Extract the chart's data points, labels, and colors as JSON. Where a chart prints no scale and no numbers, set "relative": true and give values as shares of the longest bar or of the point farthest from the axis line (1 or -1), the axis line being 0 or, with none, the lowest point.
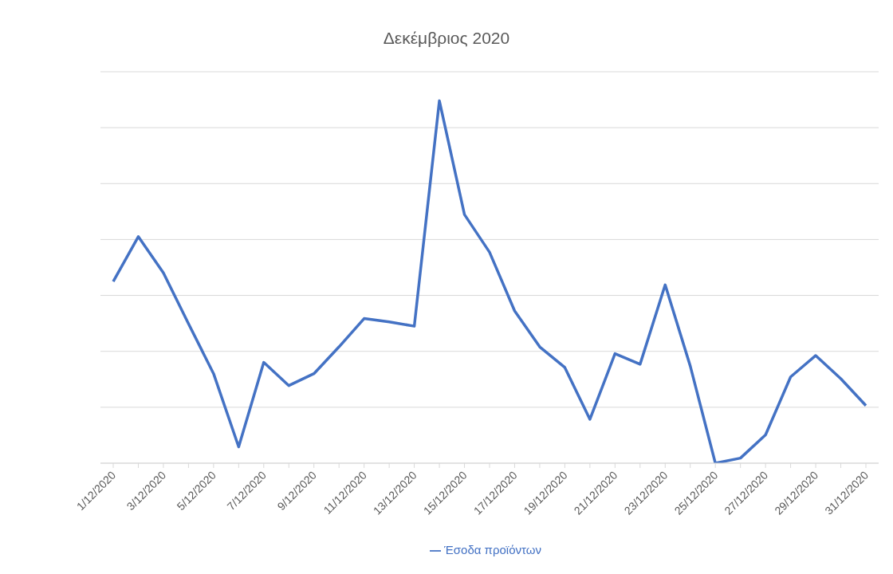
{
  "chart_data": {
    "type": "line",
    "title": "Δεκέμβριος 2020",
    "relative": true,
    "categories": [
      "1/12/2020",
      null,
      "3/12/2020",
      null,
      "5/12/2020",
      null,
      "7/12/2020",
      null,
      "9/12/2020",
      null,
      "11/12/2020",
      null,
      "13/12/2020",
      null,
      "15/12/2020",
      null,
      "17/12/2020",
      null,
      "19/12/2020",
      null,
      "21/12/2020",
      null,
      "23/12/2020",
      null,
      "25/12/2020",
      null,
      "27/12/2020",
      null,
      "29/12/2020",
      null,
      "31/12/2020"
    ],
    "series": [
      {
        "name": "Έσοδα προϊόντων",
        "color": "#4472c4",
        "values": [
          0.501,
          0.625,
          0.525,
          0.385,
          0.247,
          0.045,
          0.278,
          0.214,
          0.247,
          0.321,
          0.399,
          0.39,
          0.378,
          1,
          0.686,
          0.582,
          0.42,
          0.321,
          0.264,
          0.121,
          0.302,
          0.273,
          0.492,
          0.268,
          0,
          0.014,
          0.078,
          0.238,
          0.297,
          0.233,
          0.159
        ]
      }
    ],
    "grid": "y",
    "legend": "bottom",
    "marker": "none",
    "line_style": "solid"
  }
}
